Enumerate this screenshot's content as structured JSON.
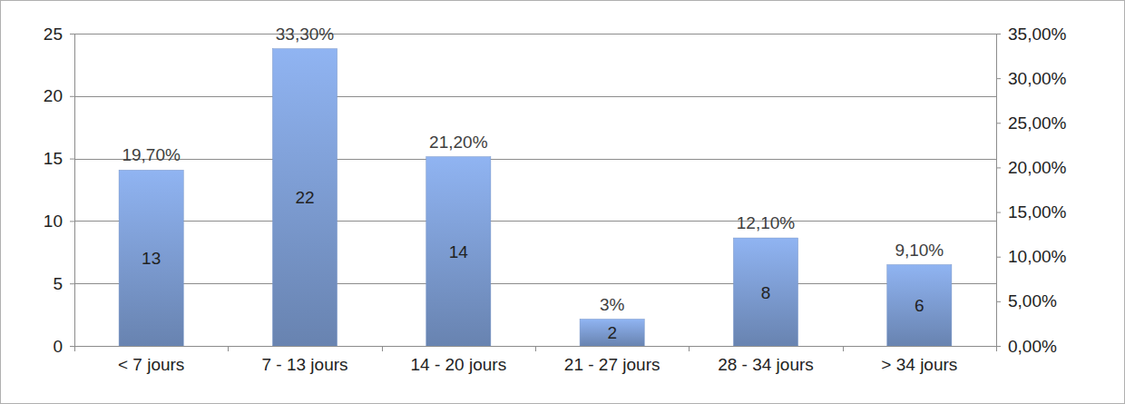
{
  "chart_data": {
    "type": "bar",
    "categories": [
      "< 7 jours",
      "7 - 13 jours",
      "14 - 20 jours",
      "21 - 27 jours",
      "28 - 34 jours",
      "> 34 jours"
    ],
    "series": [
      {
        "axis": "y2",
        "color": "#7f9fd6",
        "values": [
          19.7,
          33.3,
          21.2,
          3,
          12.1,
          9.1
        ],
        "value_labels": [
          "19,70%",
          "33,30%",
          "21,20%",
          "3%",
          "12,10%",
          "9,10%"
        ],
        "counts": [
          13,
          22,
          14,
          2,
          8,
          6
        ]
      }
    ],
    "ylim": [
      0,
      25
    ],
    "yticks": [
      0,
      5,
      10,
      15,
      20,
      25
    ],
    "y2lim": [
      0,
      35
    ],
    "y2ticks": [
      {
        "value": 0,
        "label": "0,00%"
      },
      {
        "value": 5,
        "label": "5,00%"
      },
      {
        "value": 10,
        "label": "10,00%"
      },
      {
        "value": 15,
        "label": "15,00%"
      },
      {
        "value": 20,
        "label": "20,00%"
      },
      {
        "value": 25,
        "label": "25,00%"
      },
      {
        "value": 30,
        "label": "30,00%"
      },
      {
        "value": 35,
        "label": "35,00%"
      }
    ],
    "grid": true,
    "data_labels": true
  }
}
